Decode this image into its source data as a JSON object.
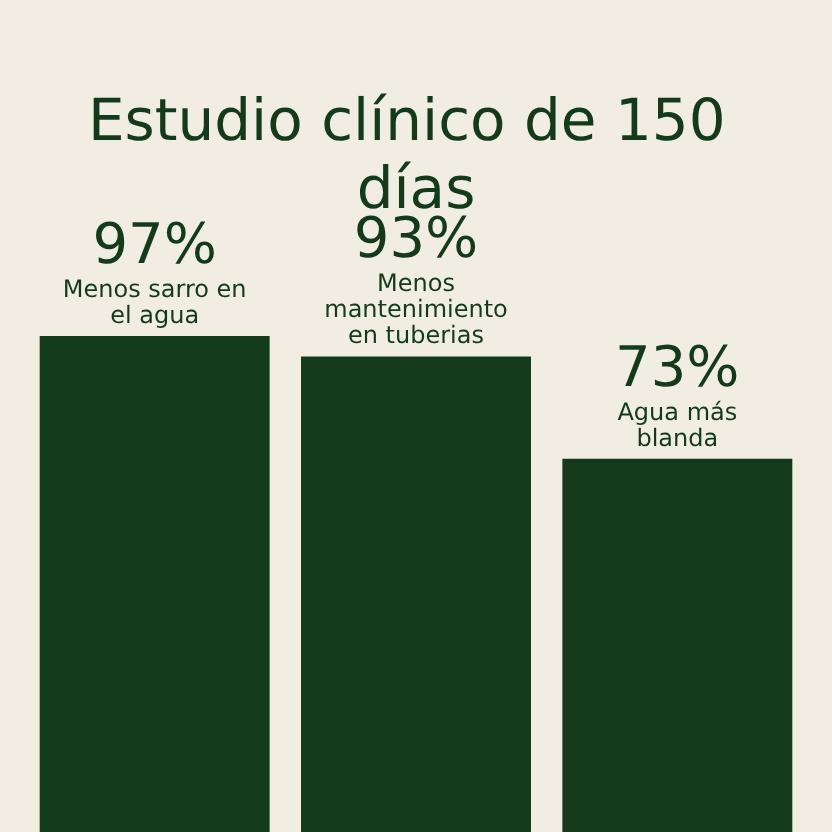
{
  "chart_data": {
    "type": "bar",
    "title": "Estudio clínico de 150 días",
    "categories": [
      "Menos sarro en el agua",
      "Menos mantenimiento en tuberias",
      "Agua más blanda"
    ],
    "values": [
      97,
      93,
      73
    ],
    "value_labels": [
      "97%",
      "93%",
      "73%"
    ],
    "color": "#133a1b"
  }
}
